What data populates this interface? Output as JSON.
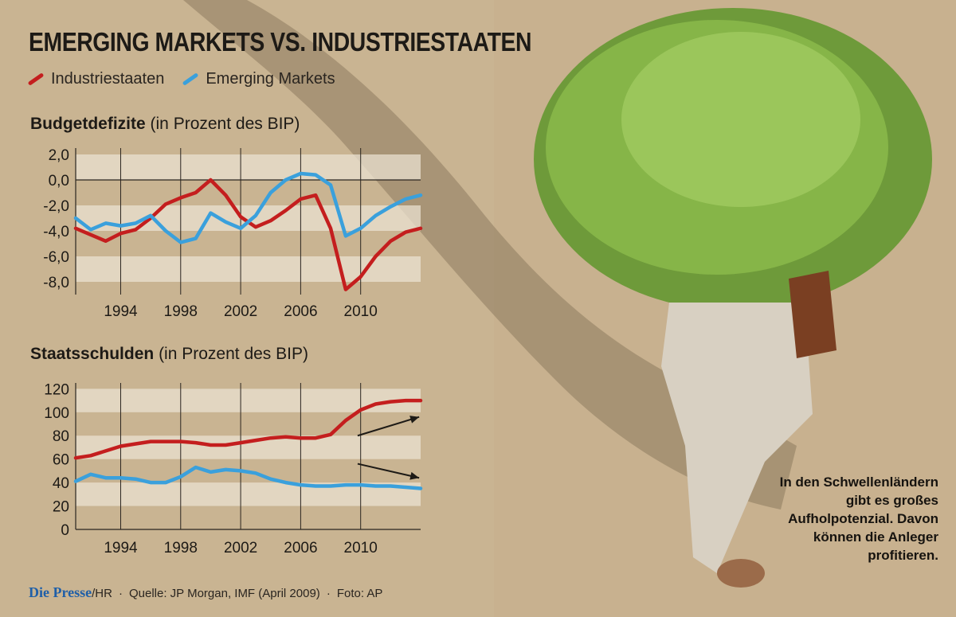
{
  "header": {
    "title": "EMERGING MARKETS VS. INDUSTRIESTAATEN",
    "legend": [
      {
        "label": "Industriestaaten",
        "color": "#c41e1e"
      },
      {
        "label": "Emerging Markets",
        "color": "#3aa0dc"
      }
    ]
  },
  "chart_data": [
    {
      "type": "line",
      "title": "Budgetdefizite",
      "subtitle": "(in Prozent des BIP)",
      "ylim": [
        -9,
        2.5
      ],
      "yticks": [
        "2,0",
        "0,0",
        "-2,0",
        "-4,0",
        "-6,0",
        "-8,0"
      ],
      "ytick_values": [
        2,
        0,
        -2,
        -4,
        -6,
        -8
      ],
      "xlim": [
        1991,
        2014
      ],
      "xticks": [
        1994,
        1998,
        2002,
        2006,
        2010
      ],
      "grid": "vertical lines at x ticks, light horizontal bands",
      "series": [
        {
          "name": "Industriestaaten",
          "color": "#c41e1e",
          "x": [
            1991,
            1992,
            1993,
            1994,
            1995,
            1996,
            1997,
            1998,
            1999,
            2000,
            2001,
            2002,
            2003,
            2004,
            2005,
            2006,
            2007,
            2008,
            2009,
            2010,
            2011,
            2012,
            2013,
            2014
          ],
          "values": [
            -3.8,
            -4.3,
            -4.8,
            -4.2,
            -3.9,
            -3.0,
            -1.9,
            -1.4,
            -1.0,
            0.0,
            -1.2,
            -2.9,
            -3.7,
            -3.2,
            -2.4,
            -1.5,
            -1.2,
            -3.8,
            -8.6,
            -7.6,
            -6.0,
            -4.8,
            -4.1,
            -3.8
          ]
        },
        {
          "name": "Emerging Markets",
          "color": "#3aa0dc",
          "x": [
            1991,
            1992,
            1993,
            1994,
            1995,
            1996,
            1997,
            1998,
            1999,
            2000,
            2001,
            2002,
            2003,
            2004,
            2005,
            2006,
            2007,
            2008,
            2009,
            2010,
            2011,
            2012,
            2013,
            2014
          ],
          "values": [
            -3.0,
            -3.9,
            -3.4,
            -3.6,
            -3.4,
            -2.8,
            -4.0,
            -4.9,
            -4.6,
            -2.6,
            -3.3,
            -3.8,
            -2.8,
            -1.0,
            0.0,
            0.5,
            0.4,
            -0.4,
            -4.4,
            -3.8,
            -2.8,
            -2.1,
            -1.5,
            -1.2
          ]
        }
      ]
    },
    {
      "type": "line",
      "title": "Staatsschulden",
      "subtitle": "(in Prozent des BIP)",
      "ylim": [
        0,
        125
      ],
      "yticks": [
        "120",
        "100",
        "80",
        "60",
        "40",
        "20",
        "0"
      ],
      "ytick_values": [
        120,
        100,
        80,
        60,
        40,
        20,
        0
      ],
      "xlim": [
        1991,
        2014
      ],
      "xticks": [
        1994,
        1998,
        2002,
        2006,
        2010
      ],
      "grid": "vertical lines at x ticks, light horizontal bands",
      "series": [
        {
          "name": "Industriestaaten",
          "color": "#c41e1e",
          "x": [
            1991,
            1992,
            1993,
            1994,
            1995,
            1996,
            1997,
            1998,
            1999,
            2000,
            2001,
            2002,
            2003,
            2004,
            2005,
            2006,
            2007,
            2008,
            2009,
            2010,
            2011,
            2012,
            2013,
            2014
          ],
          "values": [
            61,
            63,
            67,
            71,
            73,
            75,
            75,
            75,
            74,
            72,
            72,
            74,
            76,
            78,
            79,
            78,
            78,
            81,
            93,
            102,
            107,
            109,
            110,
            110
          ]
        },
        {
          "name": "Emerging Markets",
          "color": "#3aa0dc",
          "x": [
            1991,
            1992,
            1993,
            1994,
            1995,
            1996,
            1997,
            1998,
            1999,
            2000,
            2001,
            2002,
            2003,
            2004,
            2005,
            2006,
            2007,
            2008,
            2009,
            2010,
            2011,
            2012,
            2013,
            2014
          ],
          "values": [
            41,
            47,
            44,
            44,
            43,
            40,
            40,
            45,
            53,
            49,
            51,
            50,
            48,
            43,
            40,
            38,
            37,
            37,
            38,
            38,
            37,
            37,
            36,
            35
          ]
        }
      ],
      "annotations": [
        "arrow up (Industriestaaten trend)",
        "arrow down (Emerging Markets trend)"
      ]
    }
  ],
  "footer": {
    "brand": "Die Presse",
    "brand_suffix": "/HR",
    "source": "Quelle: JP Morgan, IMF (April 2009)",
    "photo": "Foto: AP"
  },
  "caption": "In den Schwellenländern gibt es großes Aufholpotenzial. Davon können die Anleger profitieren."
}
